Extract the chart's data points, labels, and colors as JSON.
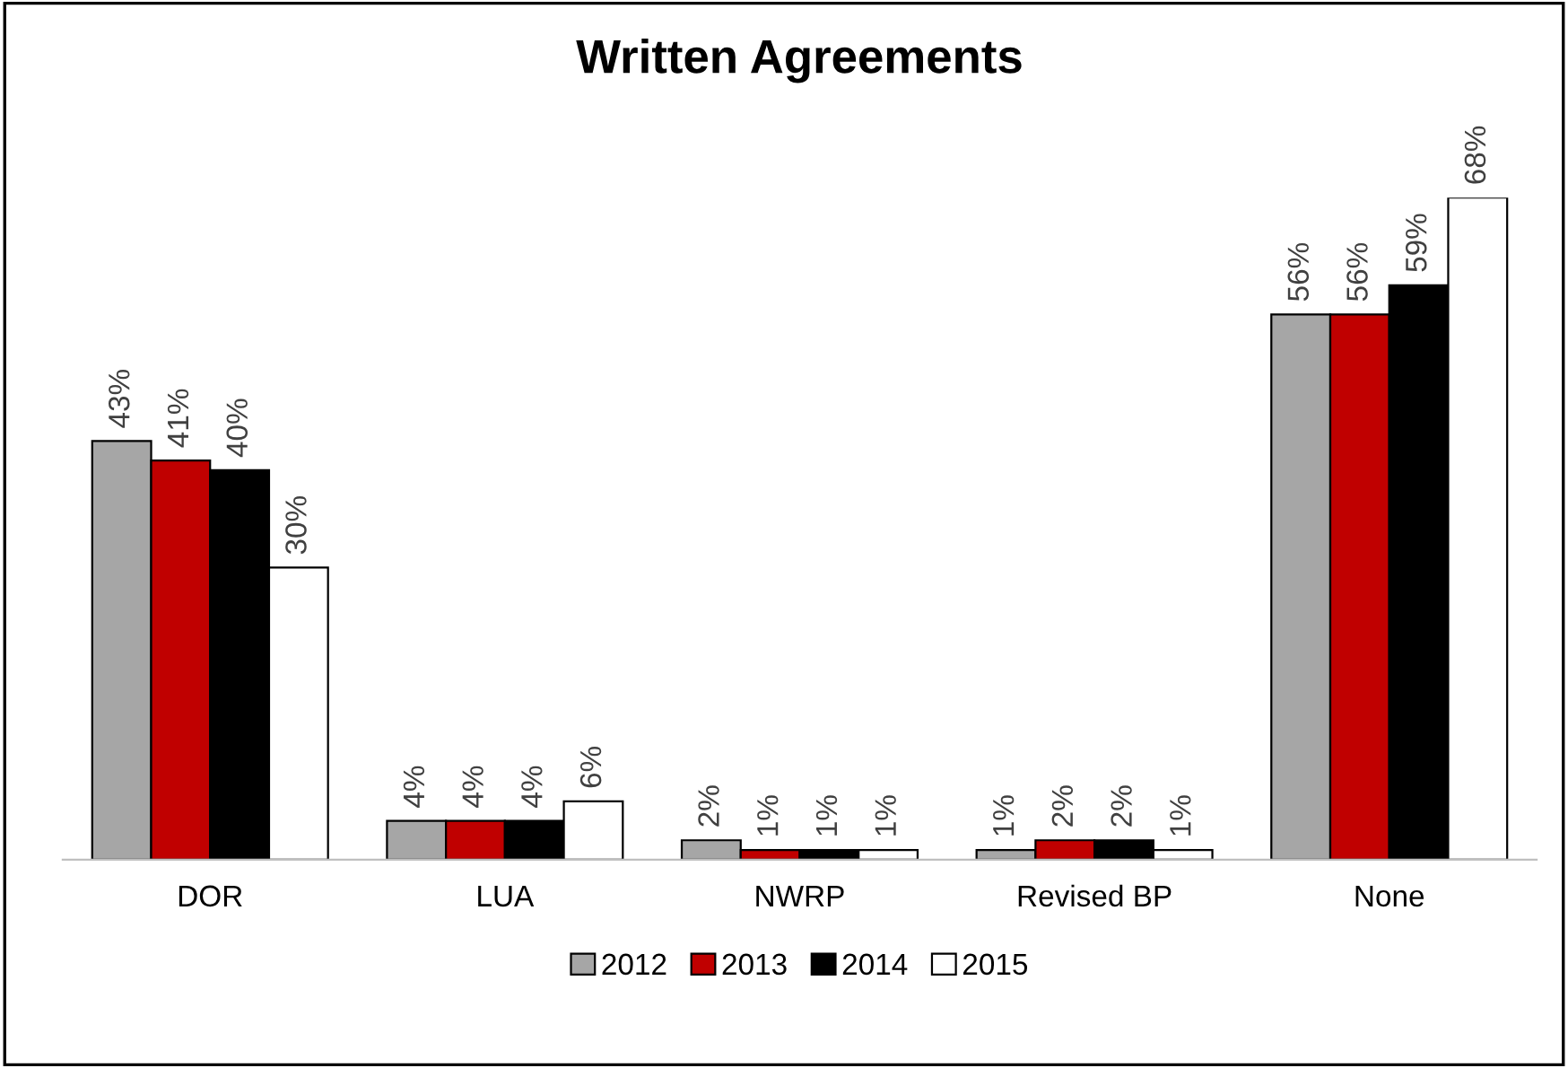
{
  "chart_data": {
    "type": "bar",
    "title": "Written Agreements",
    "categories": [
      "DOR",
      "LUA",
      "NWRP",
      "Revised BP",
      "None"
    ],
    "series": [
      {
        "name": "2012",
        "color": "#a6a6a6",
        "values": [
          43,
          4,
          2,
          1,
          56
        ],
        "value_labels": [
          "43%",
          "4%",
          "2%",
          "1%",
          "56%"
        ]
      },
      {
        "name": "2013",
        "color": "#c00000",
        "values": [
          41,
          4,
          1,
          2,
          56
        ],
        "value_labels": [
          "41%",
          "4%",
          "1%",
          "2%",
          "56%"
        ]
      },
      {
        "name": "2014",
        "color": "#000000",
        "values": [
          40,
          4,
          1,
          2,
          59
        ],
        "value_labels": [
          "40%",
          "4%",
          "1%",
          "2%",
          "59%"
        ]
      },
      {
        "name": "2015",
        "color": "#ffffff",
        "values": [
          30,
          6,
          1,
          1,
          68
        ],
        "value_labels": [
          "30%",
          "6%",
          "1%",
          "1%",
          "68%"
        ]
      }
    ],
    "legend": "bottom",
    "grid": false
  }
}
